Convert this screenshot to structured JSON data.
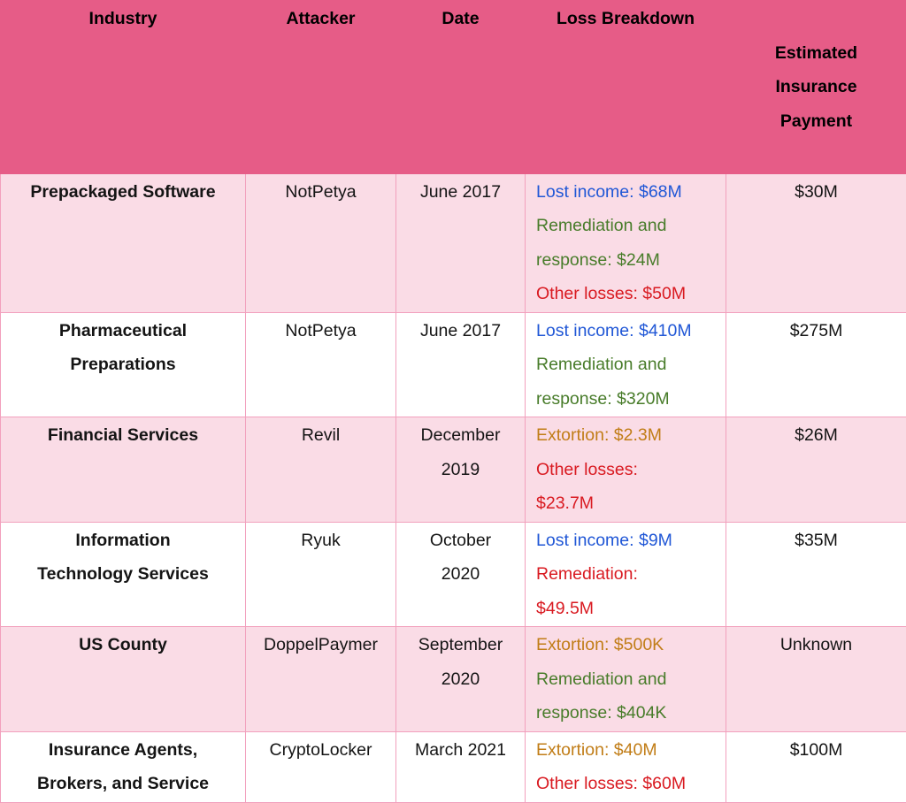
{
  "chart_data": {
    "type": "table",
    "columns": [
      "Industry",
      "Attacker",
      "Date",
      "Loss Breakdown",
      "Estimated Insurance Payment"
    ],
    "rows": [
      {
        "industry": "Prepackaged Software",
        "attacker": "NotPetya",
        "date": "June 2017",
        "loss_breakdown": [
          {
            "text": "Lost income: $68M",
            "color": "loss_blue"
          },
          {
            "text": "Remediation and\nresponse: $24M",
            "color": "loss_green"
          },
          {
            "text": "Other losses: $50M",
            "color": "loss_red"
          }
        ],
        "insurance": "$30M"
      },
      {
        "industry": "Pharmaceutical\nPreparations",
        "attacker": "NotPetya",
        "date": "June 2017",
        "loss_breakdown": [
          {
            "text": "Lost income: $410M",
            "color": "loss_blue"
          },
          {
            "text": "Remediation and\nresponse: $320M",
            "color": "loss_green"
          }
        ],
        "insurance": "$275M"
      },
      {
        "industry": "Financial Services",
        "attacker": "Revil",
        "date": "December\n2019",
        "loss_breakdown": [
          {
            "text": "Extortion: $2.3M",
            "color": "loss_orange"
          },
          {
            "text": "Other losses:\n$23.7M",
            "color": "loss_red"
          }
        ],
        "insurance": "$26M"
      },
      {
        "industry": "Information\nTechnology Services",
        "attacker": "Ryuk",
        "date": "October\n2020",
        "loss_breakdown": [
          {
            "text": "Lost income: $9M",
            "color": "loss_blue"
          },
          {
            "text": "Remediation:\n$49.5M",
            "color": "loss_red"
          }
        ],
        "insurance": "$35M"
      },
      {
        "industry": "US County",
        "attacker": "DoppelPaymer",
        "date": "September\n2020",
        "loss_breakdown": [
          {
            "text": "Extortion: $500K",
            "color": "loss_orange"
          },
          {
            "text": "Remediation and\nresponse: $404K",
            "color": "loss_green"
          }
        ],
        "insurance": "Unknown"
      },
      {
        "industry": "Insurance Agents,\nBrokers, and Service",
        "attacker": "CryptoLocker",
        "date": "March 2021",
        "loss_breakdown": [
          {
            "text": "Extortion: $40M",
            "color": "loss_orange"
          },
          {
            "text": "Other losses: $60M",
            "color": "loss_red"
          }
        ],
        "insurance": "$100M"
      }
    ]
  },
  "colors": {
    "header_bg": "#e65c87",
    "row_shaded_bg": "#fadce6",
    "row_plain_bg": "#ffffff",
    "cell_border": "#f2a0bd",
    "header_text": "#000000",
    "body_text": "#141414",
    "loss_blue": "#2057d6",
    "loss_green": "#487c2a",
    "loss_red": "#d91a21",
    "loss_orange": "#c17d17"
  }
}
